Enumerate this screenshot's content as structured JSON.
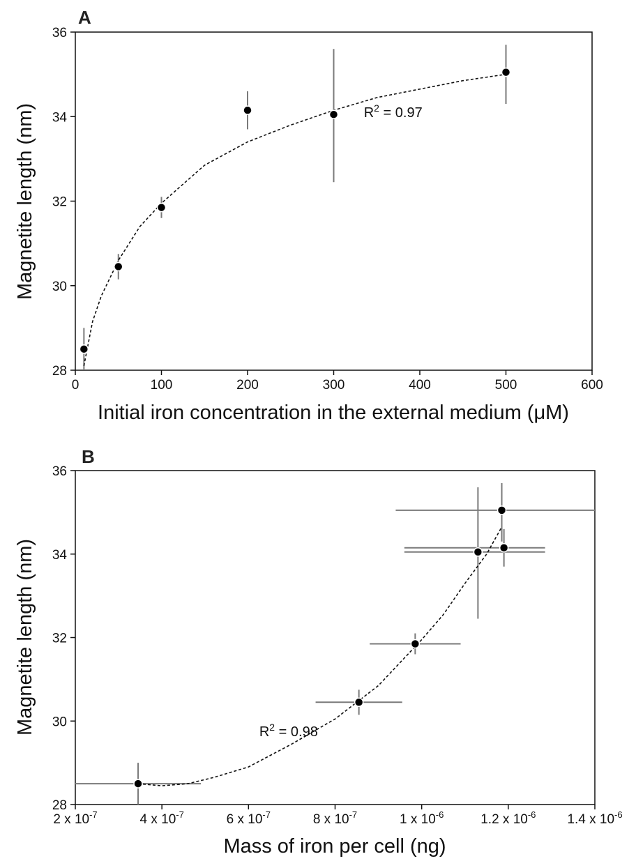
{
  "chart_data": [
    {
      "panel": "A",
      "type": "scatter",
      "xlabel": "Initial iron concentration in the external medium (μM)",
      "ylabel": "Magnetite length (nm)",
      "xlim": [
        0,
        600
      ],
      "ylim": [
        28,
        36
      ],
      "xticks": [
        0,
        100,
        200,
        300,
        400,
        500,
        600
      ],
      "yticks": [
        28,
        30,
        32,
        34,
        36
      ],
      "xtick_labels": [
        "0",
        "100",
        "200",
        "300",
        "400",
        "500",
        "600"
      ],
      "ytick_labels": [
        "28",
        "30",
        "32",
        "34",
        "36"
      ],
      "grid": false,
      "points": [
        {
          "x": 10,
          "y": 28.5,
          "yerr_low": 27.9,
          "yerr_high": 29.0
        },
        {
          "x": 50,
          "y": 30.45,
          "yerr_low": 30.15,
          "yerr_high": 30.75
        },
        {
          "x": 100,
          "y": 31.85,
          "yerr_low": 31.6,
          "yerr_high": 32.1
        },
        {
          "x": 200,
          "y": 34.15,
          "yerr_low": 33.7,
          "yerr_high": 34.6
        },
        {
          "x": 300,
          "y": 34.05,
          "yerr_low": 32.45,
          "yerr_high": 35.6
        },
        {
          "x": 500,
          "y": 35.05,
          "yerr_low": 34.3,
          "yerr_high": 35.7
        }
      ],
      "fit": {
        "kind": "logarithmic",
        "x": [
          10,
          20,
          30,
          50,
          75,
          100,
          150,
          200,
          250,
          300,
          350,
          400,
          450,
          500
        ],
        "y": [
          28.1,
          29.15,
          29.75,
          30.6,
          31.4,
          31.95,
          32.85,
          33.4,
          33.8,
          34.15,
          34.45,
          34.65,
          34.85,
          35.0
        ]
      },
      "annotation": {
        "prefix": "R",
        "sup": "2",
        "suffix": " = 0.97",
        "x": 335,
        "y": 34.1
      }
    },
    {
      "panel": "B",
      "type": "scatter",
      "xlabel": "Mass of iron per cell (ng)",
      "ylabel": "Magnetite length (nm)",
      "xlim": [
        2e-07,
        1.4e-06
      ],
      "ylim": [
        28,
        36
      ],
      "xticks": [
        2e-07,
        4e-07,
        6e-07,
        8e-07,
        1e-06,
        1.2e-06,
        1.4e-06
      ],
      "yticks": [
        28,
        30,
        32,
        34,
        36
      ],
      "xtick_labels": [
        {
          "base": "2 x 10",
          "exp": "-7"
        },
        {
          "base": "4 x 10",
          "exp": "-7"
        },
        {
          "base": "6 x 10",
          "exp": "-7"
        },
        {
          "base": "8 x 10",
          "exp": "-7"
        },
        {
          "base": "1 x 10",
          "exp": "-6"
        },
        {
          "base": "1.2 x 10",
          "exp": "-6"
        },
        {
          "base": "1.4 x 10",
          "exp": "-6"
        }
      ],
      "ytick_labels": [
        "28",
        "30",
        "32",
        "34",
        "36"
      ],
      "grid": false,
      "points": [
        {
          "x": 3.45e-07,
          "y": 28.5,
          "xerr_low": 2e-07,
          "xerr_high": 4.9e-07,
          "yerr_low": 27.95,
          "yerr_high": 29.0
        },
        {
          "x": 8.55e-07,
          "y": 30.45,
          "xerr_low": 7.55e-07,
          "xerr_high": 9.55e-07,
          "yerr_low": 30.15,
          "yerr_high": 30.75
        },
        {
          "x": 9.85e-07,
          "y": 31.85,
          "xerr_low": 8.8e-07,
          "xerr_high": 1.09e-06,
          "yerr_low": 31.6,
          "yerr_high": 32.1
        },
        {
          "x": 1.13e-06,
          "y": 34.05,
          "xerr_low": 9.6e-07,
          "xerr_high": 1.285e-06,
          "yerr_low": 32.45,
          "yerr_high": 35.6
        },
        {
          "x": 1.185e-06,
          "y": 35.05,
          "xerr_low": 9.4e-07,
          "xerr_high": 1.4e-06,
          "yerr_low": 34.3,
          "yerr_high": 35.7
        },
        {
          "x": 1.19e-06,
          "y": 34.15,
          "xerr_low": 9.6e-07,
          "xerr_high": 1.285e-06,
          "yerr_low": 33.7,
          "yerr_high": 34.6
        }
      ],
      "fit": {
        "kind": "polynomial",
        "x": [
          3.45e-07,
          4e-07,
          4.6e-07,
          5.2e-07,
          6e-07,
          7e-07,
          8e-07,
          9e-07,
          1e-06,
          1.05e-06,
          1.1e-06,
          1.15e-06,
          1.185e-06
        ],
        "y": [
          28.5,
          28.45,
          28.5,
          28.65,
          28.9,
          29.45,
          30.05,
          30.85,
          31.95,
          32.55,
          33.3,
          34.0,
          34.65
        ]
      },
      "annotation": {
        "prefix": "R",
        "sup": "2",
        "suffix": " = 0.98",
        "x": 6.25e-07,
        "y": 29.75
      }
    }
  ]
}
